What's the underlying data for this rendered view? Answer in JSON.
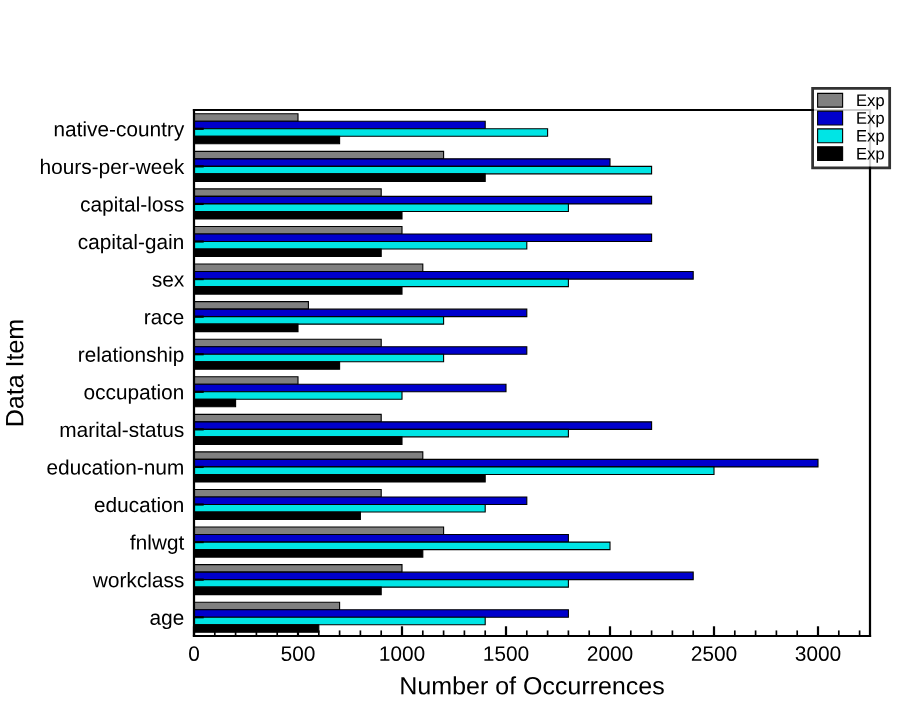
{
  "chart_data": {
    "type": "bar",
    "orientation": "horizontal",
    "xlabel": "Number of Occurrences",
    "ylabel": "Data Item",
    "categories": [
      "native-country",
      "hours-per-week",
      "capital-loss",
      "capital-gain",
      "sex",
      "race",
      "relationship",
      "occupation",
      "marital-status",
      "education-num",
      "education",
      "fnlwgt",
      "workclass",
      "age"
    ],
    "series": [
      {
        "name": "Exp",
        "color": "#808080",
        "values": [
          500,
          1200,
          900,
          1000,
          1100,
          550,
          900,
          500,
          900,
          1100,
          900,
          1200,
          1000,
          700
        ]
      },
      {
        "name": "Exp",
        "color": "#0000cc",
        "values": [
          1400,
          2000,
          2200,
          2200,
          2400,
          1600,
          1600,
          1500,
          2200,
          3000,
          1600,
          1800,
          2400,
          1800
        ]
      },
      {
        "name": "Exp",
        "color": "#00e5e5",
        "values": [
          1700,
          2200,
          1800,
          1600,
          1800,
          1200,
          1200,
          1000,
          1800,
          2500,
          1400,
          2000,
          1800,
          1400
        ]
      },
      {
        "name": "Exp",
        "color": "#000000",
        "values": [
          700,
          1400,
          1000,
          900,
          1000,
          500,
          700,
          200,
          1000,
          1400,
          800,
          1100,
          900,
          600
        ]
      }
    ],
    "xlim": [
      0,
      3250
    ],
    "xticks": [
      0,
      500,
      1000,
      1500,
      2000,
      2500,
      3000
    ],
    "legend": "top right"
  }
}
